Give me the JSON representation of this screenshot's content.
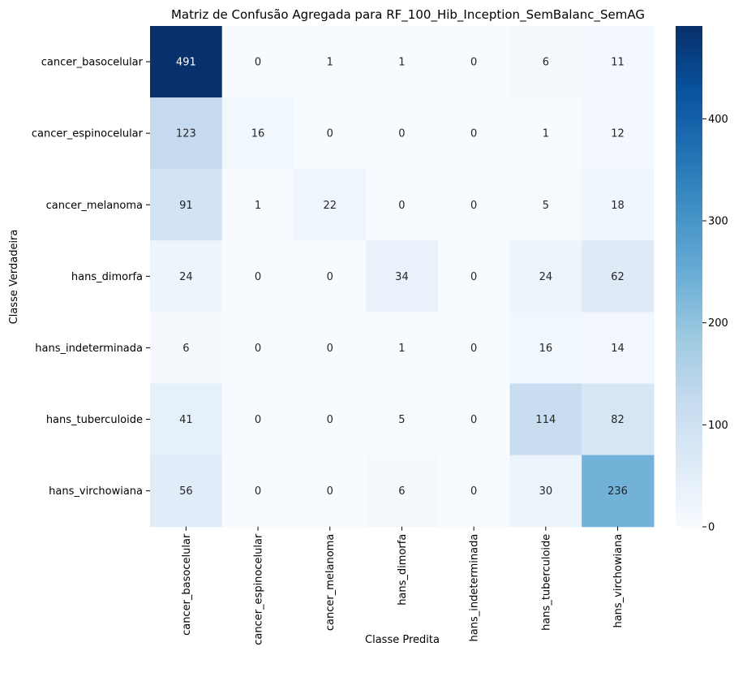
{
  "chart_data": {
    "type": "heatmap",
    "title": "Matriz de Confusão Agregada para RF_100_Hib_Inception_SemBalanc_SemAG",
    "xlabel": "Classe Predita",
    "ylabel": "Classe Verdadeira",
    "x_categories": [
      "cancer_basocelular",
      "cancer_espinocelular",
      "cancer_melanoma",
      "hans_dimorfa",
      "hans_indeterminada",
      "hans_tuberculoide",
      "hans_virchowiana"
    ],
    "y_categories": [
      "cancer_basocelular",
      "cancer_espinocelular",
      "cancer_melanoma",
      "hans_dimorfa",
      "hans_indeterminada",
      "hans_tuberculoide",
      "hans_virchowiana"
    ],
    "values": [
      [
        491,
        0,
        1,
        1,
        0,
        6,
        11
      ],
      [
        123,
        16,
        0,
        0,
        0,
        1,
        12
      ],
      [
        91,
        1,
        22,
        0,
        0,
        5,
        18
      ],
      [
        24,
        0,
        0,
        34,
        0,
        24,
        62
      ],
      [
        6,
        0,
        0,
        1,
        0,
        16,
        14
      ],
      [
        41,
        0,
        0,
        5,
        0,
        114,
        82
      ],
      [
        56,
        0,
        0,
        6,
        0,
        30,
        236
      ]
    ],
    "colormap": "Blues",
    "colors": {
      "low": "#f7fbff",
      "high": "#08306b"
    },
    "vmin": 0,
    "vmax": 491,
    "colorbar_ticks": [
      0,
      100,
      200,
      300,
      400
    ]
  }
}
